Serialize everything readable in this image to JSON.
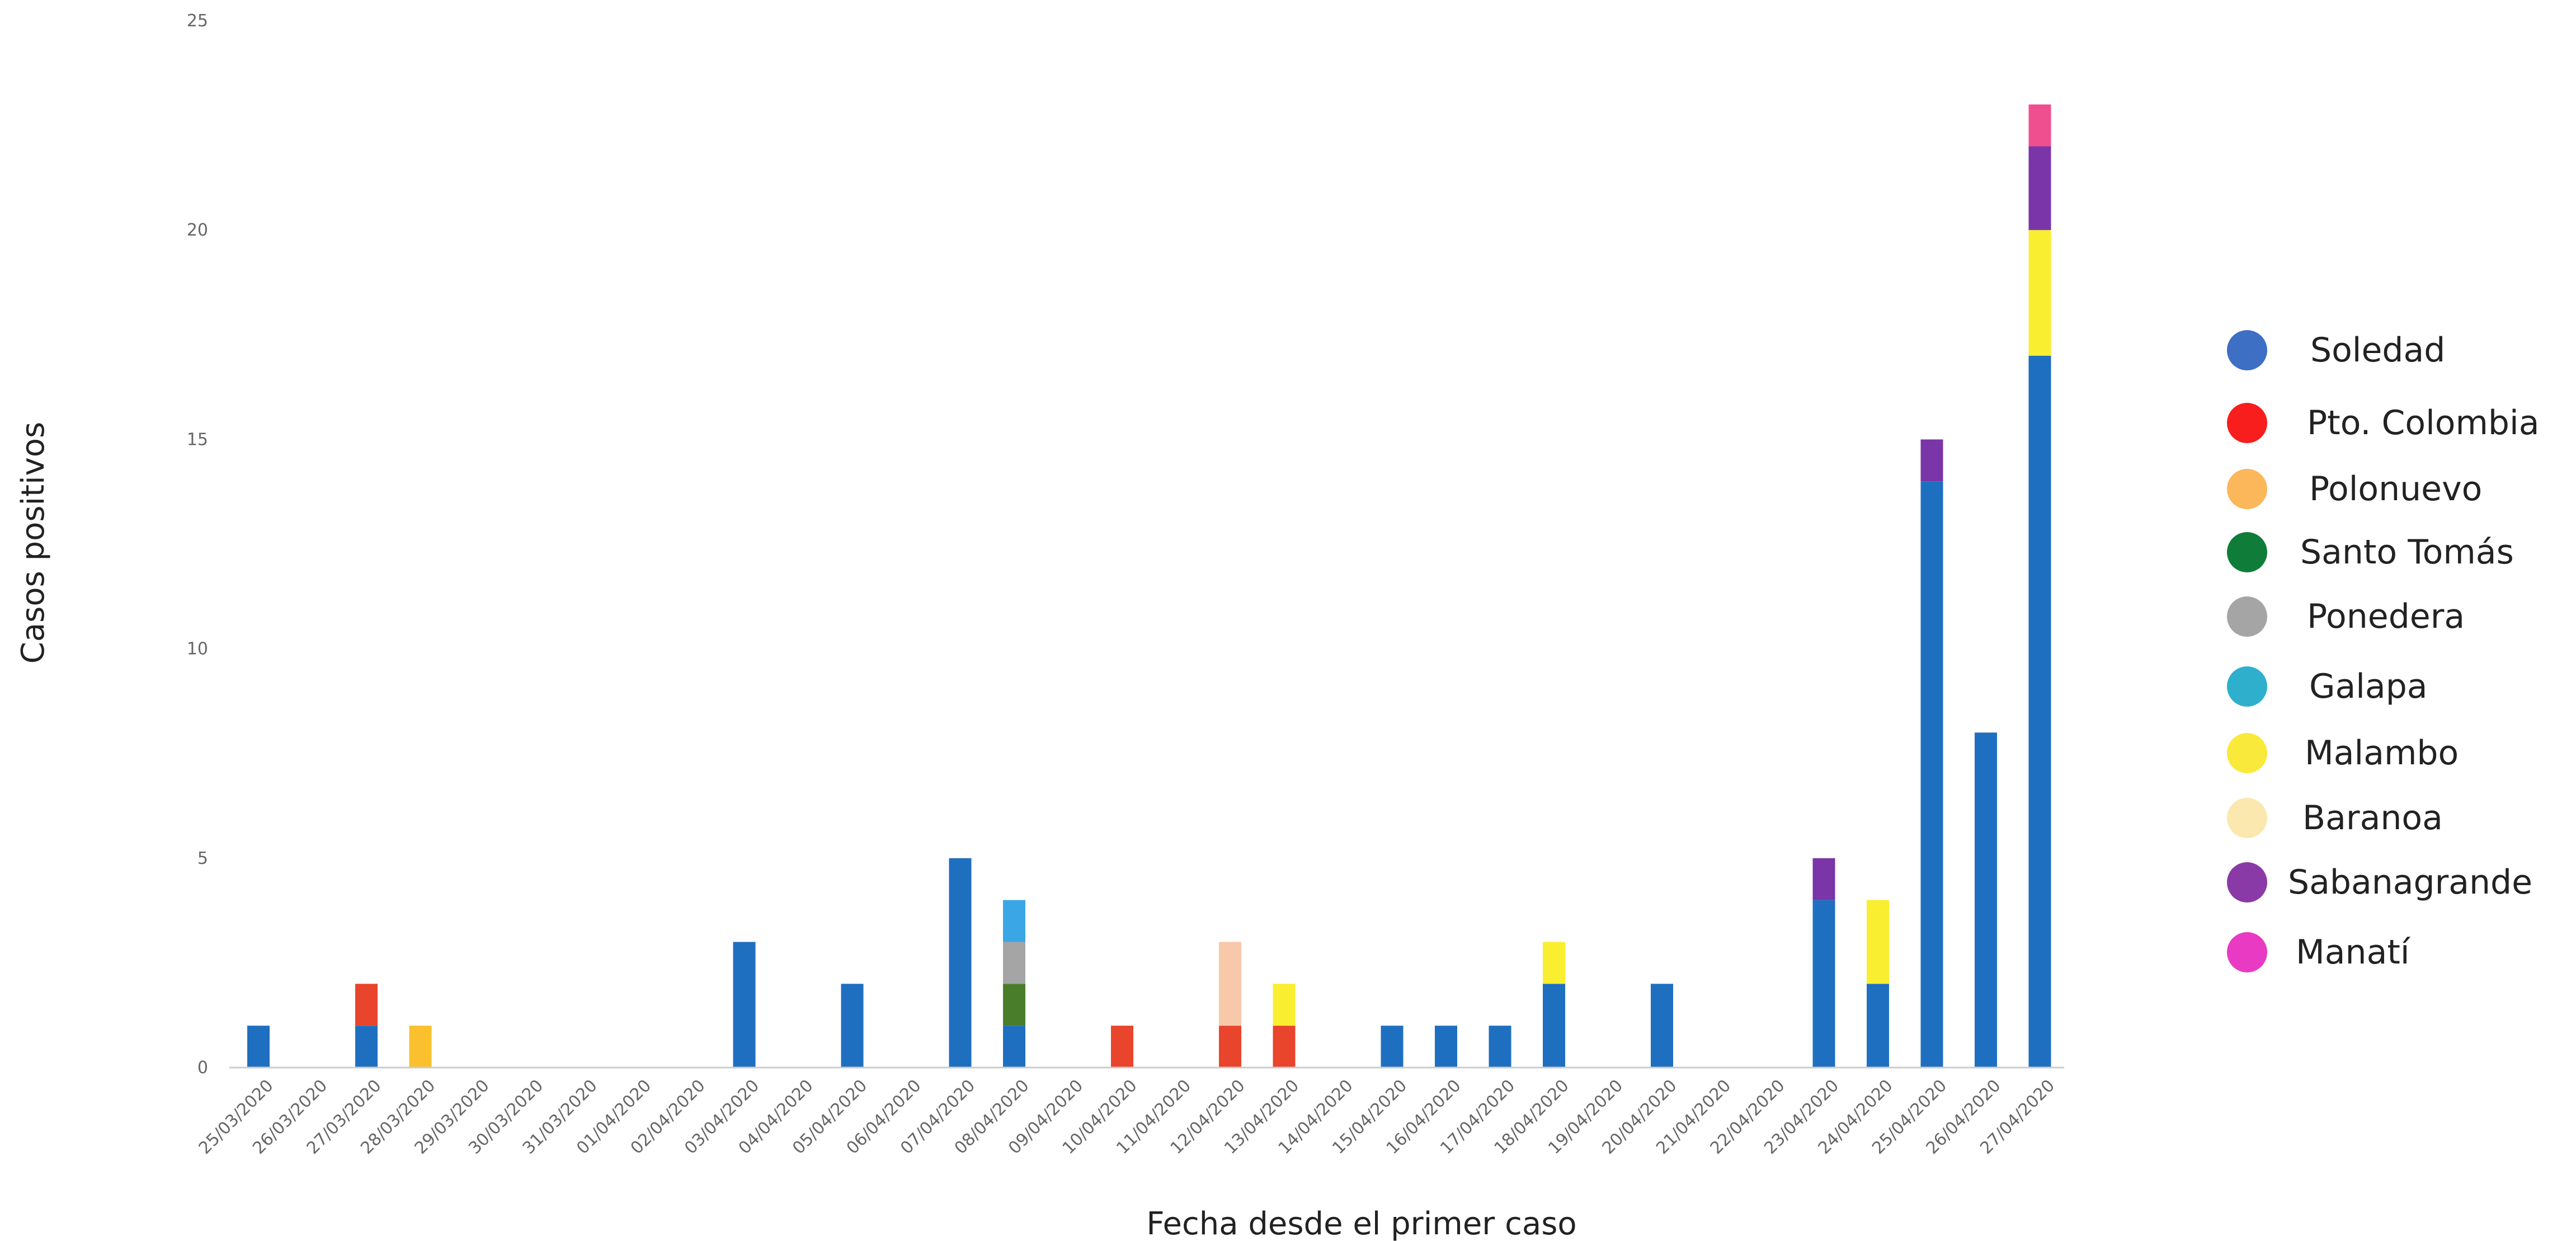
{
  "chart_data": {
    "type": "bar",
    "stacked": true,
    "xlabel": "Fecha desde el primer caso",
    "ylabel": "Casos positivos",
    "ylim": [
      0,
      25
    ],
    "yticks": [
      0,
      5,
      10,
      15,
      20,
      25
    ],
    "grid": false,
    "legend_position": "right",
    "categories": [
      "25/03/2020",
      "26/03/2020",
      "27/03/2020",
      "28/03/2020",
      "29/03/2020",
      "30/03/2020",
      "31/03/2020",
      "01/04/2020",
      "02/04/2020",
      "03/04/2020",
      "04/04/2020",
      "05/04/2020",
      "06/04/2020",
      "07/04/2020",
      "08/04/2020",
      "09/04/2020",
      "10/04/2020",
      "11/04/2020",
      "12/04/2020",
      "13/04/2020",
      "14/04/2020",
      "15/04/2020",
      "16/04/2020",
      "17/04/2020",
      "18/04/2020",
      "19/04/2020",
      "20/04/2020",
      "21/04/2020",
      "22/04/2020",
      "23/04/2020",
      "24/04/2020",
      "25/04/2020",
      "26/04/2020",
      "27/04/2020"
    ],
    "series": [
      {
        "name": "Soledad",
        "color": "#1f6fc1",
        "values": [
          1,
          0,
          1,
          0,
          0,
          0,
          0,
          0,
          0,
          3,
          0,
          2,
          0,
          5,
          1,
          0,
          0,
          0,
          0,
          0,
          0,
          1,
          1,
          1,
          2,
          0,
          2,
          0,
          0,
          4,
          2,
          14,
          8,
          17
        ]
      },
      {
        "name": "Pto. Colombia",
        "color": "#e8452c",
        "values": [
          0,
          0,
          1,
          0,
          0,
          0,
          0,
          0,
          0,
          0,
          0,
          0,
          0,
          0,
          0,
          0,
          1,
          0,
          1,
          1,
          0,
          0,
          0,
          0,
          0,
          0,
          0,
          0,
          0,
          0,
          0,
          0,
          0,
          0
        ]
      },
      {
        "name": "Polonuevo",
        "color": "#fbc02d",
        "values": [
          0,
          0,
          0,
          1,
          0,
          0,
          0,
          0,
          0,
          0,
          0,
          0,
          0,
          0,
          0,
          0,
          0,
          0,
          0,
          0,
          0,
          0,
          0,
          0,
          0,
          0,
          0,
          0,
          0,
          0,
          0,
          0,
          0,
          0
        ]
      },
      {
        "name": "Santo Tomás",
        "color": "#4a7d2a",
        "values": [
          0,
          0,
          0,
          0,
          0,
          0,
          0,
          0,
          0,
          0,
          0,
          0,
          0,
          0,
          1,
          0,
          0,
          0,
          0,
          0,
          0,
          0,
          0,
          0,
          0,
          0,
          0,
          0,
          0,
          0,
          0,
          0,
          0,
          0
        ]
      },
      {
        "name": "Ponedera",
        "color": "#a5a5a5",
        "values": [
          0,
          0,
          0,
          0,
          0,
          0,
          0,
          0,
          0,
          0,
          0,
          0,
          0,
          0,
          1,
          0,
          0,
          0,
          0,
          0,
          0,
          0,
          0,
          0,
          0,
          0,
          0,
          0,
          0,
          0,
          0,
          0,
          0,
          0
        ]
      },
      {
        "name": "Galapa",
        "color": "#3aa6e6",
        "values": [
          0,
          0,
          0,
          0,
          0,
          0,
          0,
          0,
          0,
          0,
          0,
          0,
          0,
          0,
          1,
          0,
          0,
          0,
          0,
          0,
          0,
          0,
          0,
          0,
          0,
          0,
          0,
          0,
          0,
          0,
          0,
          0,
          0,
          0
        ]
      },
      {
        "name": "Malambo",
        "color": "#f9ee2f",
        "values": [
          0,
          0,
          0,
          0,
          0,
          0,
          0,
          0,
          0,
          0,
          0,
          0,
          0,
          0,
          0,
          0,
          0,
          0,
          0,
          1,
          0,
          0,
          0,
          0,
          1,
          0,
          0,
          0,
          0,
          0,
          2,
          0,
          0,
          3
        ]
      },
      {
        "name": "Baranoa",
        "color": "#f8c8aa",
        "values": [
          0,
          0,
          0,
          0,
          0,
          0,
          0,
          0,
          0,
          0,
          0,
          0,
          0,
          0,
          0,
          0,
          0,
          0,
          2,
          0,
          0,
          0,
          0,
          0,
          0,
          0,
          0,
          0,
          0,
          0,
          0,
          0,
          0,
          0
        ]
      },
      {
        "name": "Sabanagrande",
        "color": "#7a35a8",
        "values": [
          0,
          0,
          0,
          0,
          0,
          0,
          0,
          0,
          0,
          0,
          0,
          0,
          0,
          0,
          0,
          0,
          0,
          0,
          0,
          0,
          0,
          0,
          0,
          0,
          0,
          0,
          0,
          0,
          0,
          1,
          0,
          1,
          0,
          2
        ]
      },
      {
        "name": "Manatí",
        "color": "#ef4f8f",
        "values": [
          0,
          0,
          0,
          0,
          0,
          0,
          0,
          0,
          0,
          0,
          0,
          0,
          0,
          0,
          0,
          0,
          0,
          0,
          0,
          0,
          0,
          0,
          0,
          0,
          0,
          0,
          0,
          0,
          0,
          0,
          0,
          0,
          0,
          1
        ]
      }
    ],
    "legend_colors": [
      "#3d6fc4",
      "#f81e1e",
      "#fbb759",
      "#107c3a",
      "#a5a5a5",
      "#2eb0cc",
      "#f9e93b",
      "#fbe8ae",
      "#8a3aa6",
      "#e83ac2"
    ]
  }
}
